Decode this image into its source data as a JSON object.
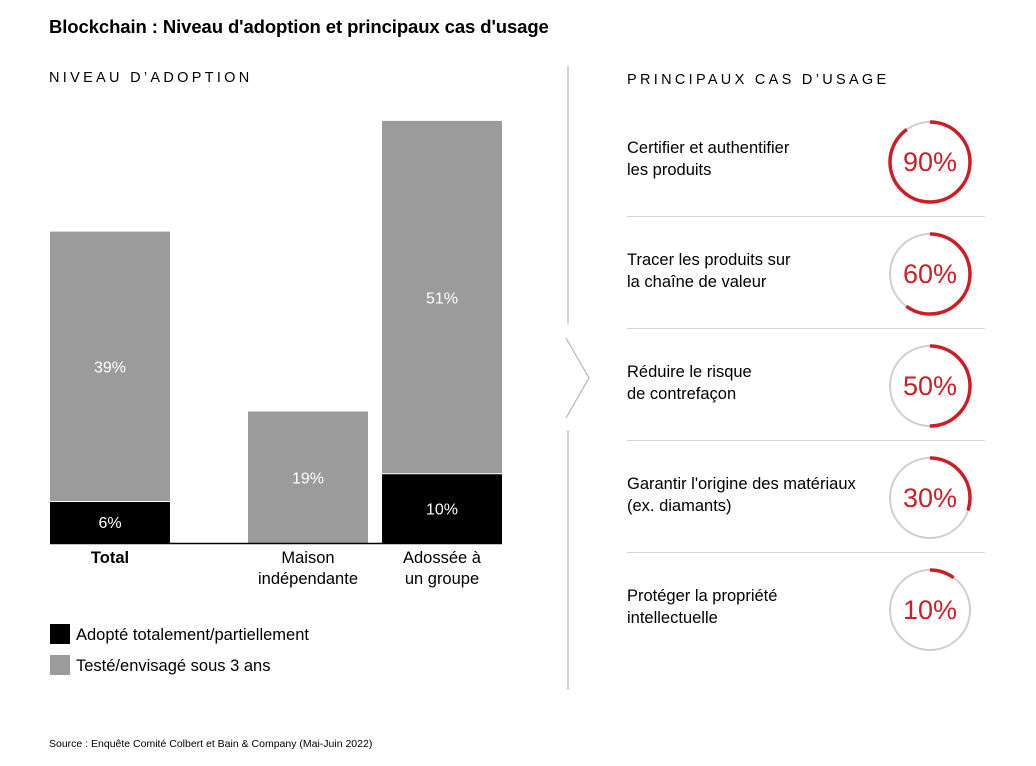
{
  "title": "Blockchain : Niveau d'adoption et principaux cas d'usage",
  "left_section_title": "NIVEAU D’ADOPTION",
  "right_section_title": "PRINCIPAUX CAS D’USAGE",
  "chart_data": {
    "type": "bar",
    "stacked": true,
    "categories": [
      "Total",
      "Maison\nindépendante",
      "Adossée à\nun groupe"
    ],
    "series": [
      {
        "name": "Adopté totalement/partiellement",
        "values": [
          6,
          0,
          10
        ],
        "labels": [
          "6%",
          "",
          "10%"
        ],
        "color": "#000000",
        "label_color": "#ffffff"
      },
      {
        "name": "Testé/envisagé sous 3 ans",
        "values": [
          39,
          19,
          51
        ],
        "labels": [
          "39%",
          "19%",
          "51%"
        ],
        "color": "#9b9b9b",
        "label_color": "#ffffff"
      }
    ],
    "category_bold": [
      true,
      false,
      false
    ],
    "ylim": [
      0,
      61
    ],
    "grid": false,
    "legend_position": "bottom-left"
  },
  "legend": [
    {
      "label": "Adopté totalement/partiellement",
      "color": "#000000"
    },
    {
      "label": "Testé/envisagé sous 3 ans",
      "color": "#9b9b9b"
    }
  ],
  "use_cases": [
    {
      "label": "Certifier et authentifier\nles produits",
      "value": 90,
      "value_text": "90%"
    },
    {
      "label": "Tracer les produits sur\nla chaîne de valeur",
      "value": 60,
      "value_text": "60%"
    },
    {
      "label": "Réduire le risque\nde contrefaçon",
      "value": 50,
      "value_text": "50%"
    },
    {
      "label": "Garantir l'origine des matériaux\n(ex. diamants)",
      "value": 30,
      "value_text": "30%"
    },
    {
      "label": "Protéger la propriété\nintellectuelle",
      "value": 10,
      "value_text": "10%"
    }
  ],
  "colors": {
    "accent_red": "#cc1f25",
    "ring_grey": "#cfcfcf",
    "separator": "#b5b5b5"
  },
  "source": "Source : Enquête Comité Colbert et Bain & Company (Mai-Juin 2022)"
}
